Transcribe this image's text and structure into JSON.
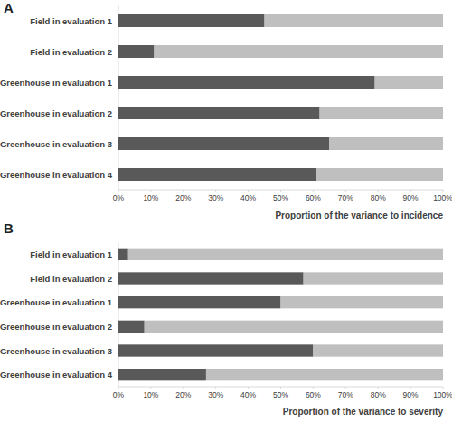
{
  "chart_data": [
    {
      "type": "bar",
      "title": "A",
      "orientation": "horizontal",
      "stacked": true,
      "x_label": "Proportion of the variance to incidence",
      "categories": [
        "Field in evaluation 1",
        "Field in evaluation 2",
        "Greenhouse in evaluation 1",
        "Greenhouse in evaluation 2",
        "Greenhouse in evaluation 3",
        "Greenhouse in evaluation 4"
      ],
      "series": [
        {
          "color": "#595959",
          "values": [
            45,
            11,
            79,
            62,
            65,
            61
          ]
        },
        {
          "color": "#bfbfbf",
          "values": [
            55,
            89,
            21,
            38,
            35,
            39
          ]
        }
      ],
      "xlim": [
        0,
        100
      ],
      "xticks": [
        {
          "value": 0,
          "label": "0%"
        },
        {
          "value": 10,
          "label": "10%"
        },
        {
          "value": 20,
          "label": "20%"
        },
        {
          "value": 30,
          "label": "30%"
        },
        {
          "value": 40,
          "label": "40%"
        },
        {
          "value": 50,
          "label": "50%"
        },
        {
          "value": 60,
          "label": "60%"
        },
        {
          "value": 70,
          "label": "70%"
        },
        {
          "value": 80,
          "label": "80%"
        },
        {
          "value": 90,
          "label": "90%"
        },
        {
          "value": 100,
          "label": "100%"
        }
      ]
    },
    {
      "type": "bar",
      "title": "B",
      "orientation": "horizontal",
      "stacked": true,
      "x_label": "Proportion of the variance to severity",
      "categories": [
        "Field in evaluation 1",
        "Field in evaluation 2",
        "Greenhouse in evaluation 1",
        "Greenhouse in evaluation 2",
        "Greenhouse in evaluation 3",
        "Greenhouse in evaluation 4"
      ],
      "series": [
        {
          "color": "#595959",
          "values": [
            3,
            57,
            50,
            8,
            60,
            27
          ]
        },
        {
          "color": "#bfbfbf",
          "values": [
            97,
            43,
            50,
            92,
            40,
            73
          ]
        }
      ],
      "xlim": [
        0,
        100
      ],
      "xticks": [
        {
          "value": 0,
          "label": "0%"
        },
        {
          "value": 10,
          "label": "10%"
        },
        {
          "value": 20,
          "label": "20%"
        },
        {
          "value": 30,
          "label": "30%"
        },
        {
          "value": 40,
          "label": "40%"
        },
        {
          "value": 50,
          "label": "50%"
        },
        {
          "value": 60,
          "label": "60%"
        },
        {
          "value": 70,
          "label": "70%"
        },
        {
          "value": 80,
          "label": "80%"
        },
        {
          "value": 90,
          "label": "90%"
        },
        {
          "value": 100,
          "label": "100%"
        }
      ]
    }
  ]
}
